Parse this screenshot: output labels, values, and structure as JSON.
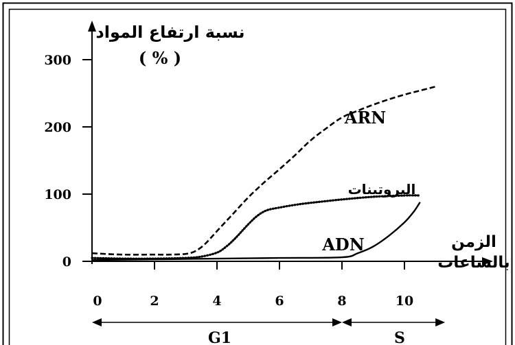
{
  "chart_data": {
    "type": "line",
    "ylabel": "نسبة ارتفاع المواد",
    "ylabel_unit": "( % )",
    "xlabel_line1": "الزمن",
    "xlabel_line2": "بالساعات",
    "x_ticks": [
      0,
      2,
      4,
      6,
      8,
      10
    ],
    "y_ticks": [
      0,
      100,
      200,
      300
    ],
    "xlim": [
      0,
      11.6
    ],
    "ylim": [
      0,
      330
    ],
    "grid": false,
    "series": [
      {
        "name": "ARN",
        "style": "dashed",
        "x": [
          0,
          1,
          2,
          2.5,
          3.0,
          3.3,
          3.6,
          4.0,
          4.5,
          5.0,
          5.5,
          6.0,
          6.5,
          7.0,
          7.5,
          8.0,
          8.5,
          9.0,
          9.5,
          10.0,
          10.5,
          11.0
        ],
        "y": [
          12,
          10,
          10,
          10,
          11,
          15,
          25,
          45,
          70,
          95,
          117,
          137,
          158,
          180,
          198,
          214,
          224,
          233,
          241,
          248,
          254,
          260
        ]
      },
      {
        "name": "البروتينات",
        "style": "dotted",
        "x": [
          0,
          1,
          2,
          3,
          3.5,
          4.0,
          4.3,
          4.6,
          5.0,
          5.3,
          5.6,
          6.0,
          6.5,
          7.0,
          8.0,
          9.0,
          10.0,
          10.5
        ],
        "y": [
          5,
          4,
          4,
          5,
          7,
          13,
          22,
          35,
          55,
          68,
          76,
          80,
          84,
          87,
          92,
          96,
          98,
          98
        ]
      },
      {
        "name": "ADN",
        "style": "solid",
        "x": [
          0,
          2,
          4,
          6,
          8,
          8.5,
          9.0,
          9.5,
          10.0,
          10.3,
          10.5
        ],
        "y": [
          2,
          3,
          4,
          5,
          6,
          12,
          22,
          38,
          58,
          74,
          88
        ]
      }
    ],
    "phases": [
      {
        "name": "G1",
        "x0": 0,
        "x1": 8
      },
      {
        "name": "S",
        "x0": 8,
        "x1": 11.3
      }
    ]
  }
}
